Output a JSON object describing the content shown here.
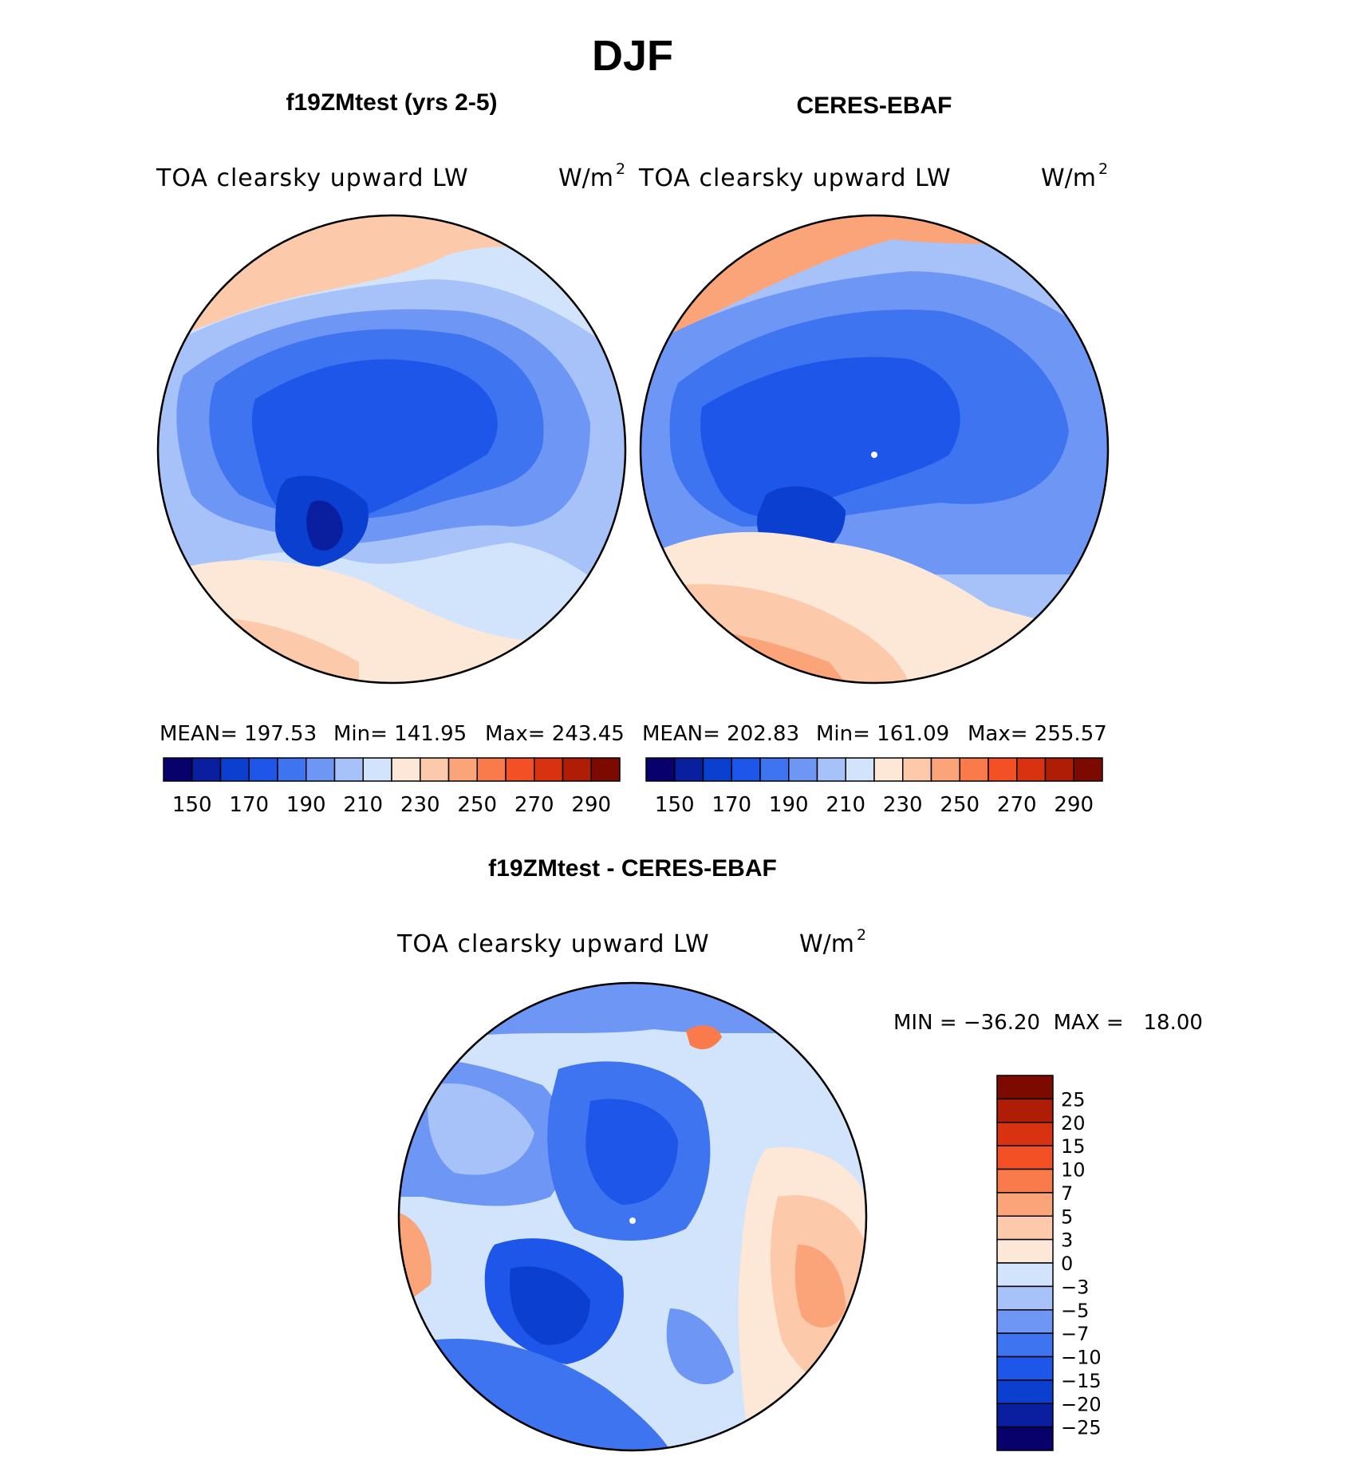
{
  "figure": {
    "title": "DJF",
    "panel_left": {
      "title": "f19ZMtest (yrs 2-5)",
      "subtitle": "TOA clearsky upward LW",
      "units": "W/m",
      "units_sup": "2",
      "stats": {
        "mean": "MEAN= 197.53",
        "min": "Min= 141.95",
        "max": "Max= 243.45"
      }
    },
    "panel_right": {
      "title": "CERES-EBAF",
      "subtitle": "TOA clearsky upward LW",
      "units": "W/m",
      "units_sup": "2",
      "stats": {
        "mean": "MEAN= 202.83",
        "min": "Min= 161.09",
        "max": "Max= 255.57"
      }
    },
    "panel_diff": {
      "title": "f19ZMtest - CERES-EBAF",
      "subtitle": "TOA clearsky upward LW",
      "units": "W/m",
      "units_sup": "2",
      "minmax": "MIN = −36.20  MAX =   18.00"
    }
  },
  "colorbar_abs": {
    "colors": [
      "#08006b",
      "#0a1ea0",
      "#0b3fd0",
      "#1e56ea",
      "#3f74f0",
      "#6e97f5",
      "#a6c2f8",
      "#d2e4fb",
      "#fde8d8",
      "#fcc9aa",
      "#fba47a",
      "#f97a4a",
      "#f45026",
      "#d83210",
      "#b01d06",
      "#7d0a00"
    ],
    "tick_labels": [
      "150",
      "170",
      "190",
      "210",
      "230",
      "250",
      "270",
      "290"
    ]
  },
  "colorbar_diff": {
    "colors": [
      "#7d0a00",
      "#b01d06",
      "#d83210",
      "#f45026",
      "#f97a4a",
      "#fba47a",
      "#fcc9aa",
      "#fde8d8",
      "#d2e4fb",
      "#a6c2f8",
      "#6e97f5",
      "#3f74f0",
      "#1e56ea",
      "#0b3fd0",
      "#0a1ea0",
      "#08006b"
    ],
    "tick_labels": [
      "25",
      "20",
      "15",
      "10",
      "7",
      "5",
      "3",
      "0",
      "−3",
      "−5",
      "−7",
      "−10",
      "−15",
      "−20",
      "−25"
    ]
  }
}
